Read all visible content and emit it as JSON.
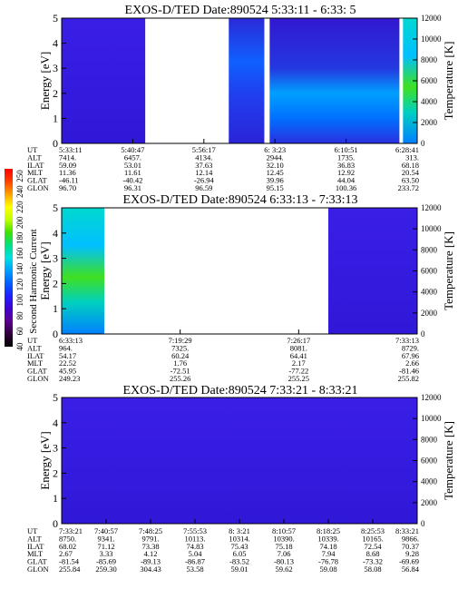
{
  "chart_data": [
    {
      "type": "heatmap",
      "title": "EXOS-D/TED   Date:890524   5:33:11 - 6:33: 5",
      "ylabel": "Energy [eV]",
      "ylabel_right": "Temperature [K]",
      "ylim": [
        0,
        5
      ],
      "y2lim": [
        0,
        12000
      ],
      "yticks": [
        "0",
        "1",
        "2",
        "3",
        "4",
        "5"
      ],
      "y2ticks": [
        "0",
        "2000",
        "4000",
        "6000",
        "8000",
        "10000",
        "12000"
      ],
      "row_labels": [
        "UT",
        "ALT",
        "ILAT",
        "MLT",
        "GLAT",
        "GLON"
      ],
      "columns": [
        [
          "5:33:11",
          "7414.",
          "59.09",
          "11.36",
          "-46.11",
          "96.70"
        ],
        [
          "5:40:47",
          "6457.",
          "53.01",
          "11.61",
          "-40.42",
          "96.31"
        ],
        [
          "5:56:17",
          "4134.",
          "37.63",
          "12.14",
          "-26.94",
          "96.59"
        ],
        [
          "6: 3:23",
          "2944.",
          "32.10",
          "12.45",
          "39.96",
          "95.15"
        ],
        [
          "6:10:51",
          "1735.",
          "36.83",
          "12.92",
          "44.04",
          "100.36"
        ],
        [
          "6:28:41",
          "313.",
          "68.18",
          "20.54",
          "63.50",
          "233.72"
        ]
      ],
      "data_segments": [
        {
          "from": 0.0,
          "to": 0.235,
          "level": "low"
        },
        {
          "from": 0.47,
          "to": 0.57,
          "level": "medium"
        },
        {
          "from": 0.585,
          "to": 0.95,
          "level": "high"
        },
        {
          "from": 0.96,
          "to": 1.0,
          "level": "very-high"
        }
      ]
    },
    {
      "type": "heatmap",
      "title": "EXOS-D/TED   Date:890524   6:33:13 - 7:33:13",
      "ylabel": "Energy [eV]",
      "ylabel_right": "Temperature [K]",
      "ylim": [
        0,
        5
      ],
      "y2lim": [
        0,
        12000
      ],
      "yticks": [
        "0",
        "1",
        "2",
        "3",
        "4",
        "5"
      ],
      "y2ticks": [
        "0",
        "2000",
        "4000",
        "6000",
        "8000",
        "10000",
        "12000"
      ],
      "row_labels": [
        "UT",
        "ALT",
        "ILAT",
        "MLT",
        "GLAT",
        "GLON"
      ],
      "columns": [
        [
          "6:33:13",
          "964.",
          "54.17",
          "22.52",
          "45.95",
          "249.23"
        ],
        [
          "7:19:29",
          "7325.",
          "60.24",
          "1.76",
          "-72.51",
          "255.26"
        ],
        [
          "7:26:17",
          "8081.",
          "64.41",
          "2.17",
          "-77.22",
          "255.25"
        ],
        [
          "7:33:13",
          "8729.",
          "67.96",
          "2.66",
          "-81.46",
          "255.82"
        ]
      ],
      "data_segments": [
        {
          "from": 0.0,
          "to": 0.12,
          "level": "very-high"
        },
        {
          "from": 0.75,
          "to": 1.0,
          "level": "low"
        }
      ]
    },
    {
      "type": "heatmap",
      "title": "EXOS-D/TED   Date:890524   7:33:21 - 8:33:21",
      "ylabel": "Energy [eV]",
      "ylabel_right": "Temperature [K]",
      "ylim": [
        0,
        5
      ],
      "y2lim": [
        0,
        12000
      ],
      "yticks": [
        "0",
        "1",
        "2",
        "3",
        "4",
        "5"
      ],
      "y2ticks": [
        "0",
        "2000",
        "4000",
        "6000",
        "8000",
        "10000",
        "12000"
      ],
      "row_labels": [
        "UT",
        "ALT",
        "ILAT",
        "MLT",
        "GLAT",
        "GLON"
      ],
      "columns": [
        [
          "7:33:21",
          "8750.",
          "68.02",
          "2.67",
          "-81.54",
          "255.84"
        ],
        [
          "7:40:57",
          "9341.",
          "71.12",
          "3.33",
          "-85.69",
          "259.30"
        ],
        [
          "7:48:25",
          "9791.",
          "73.38",
          "4.12",
          "-89.13",
          "304.43"
        ],
        [
          "7:55:53",
          "10113.",
          "74.83",
          "5.04",
          "-86.87",
          "53.58"
        ],
        [
          "8: 3:21",
          "10314.",
          "75.43",
          "6.05",
          "-83.52",
          "59.01"
        ],
        [
          "8:10:57",
          "10390.",
          "75.18",
          "7.06",
          "-80.13",
          "59.62"
        ],
        [
          "8:18:25",
          "10339.",
          "74.18",
          "7.94",
          "-76.78",
          "59.08"
        ],
        [
          "8:25:53",
          "10165.",
          "72.54",
          "8.68",
          "-73.32",
          "58.08"
        ],
        [
          "8:33:21",
          "9866.",
          "70.37",
          "9.28",
          "-69.69",
          "56.84"
        ]
      ],
      "data_segments": [
        {
          "from": 0.0,
          "to": 1.0,
          "level": "low"
        }
      ]
    }
  ],
  "colorbar": {
    "label": "Second Harmonic Current",
    "ticks": [
      "40",
      "60",
      "80",
      "100",
      "120",
      "140",
      "160",
      "180",
      "200",
      "220",
      "240",
      "250"
    ],
    "colors": [
      "#000000",
      "#30003a",
      "#5a0090",
      "#4000d0",
      "#2020ff",
      "#0060ff",
      "#00a0ff",
      "#00e0e0",
      "#00e080",
      "#40e000",
      "#c0ff00",
      "#ffff00",
      "#ffa000",
      "#ff4000",
      "#ff0000"
    ]
  }
}
